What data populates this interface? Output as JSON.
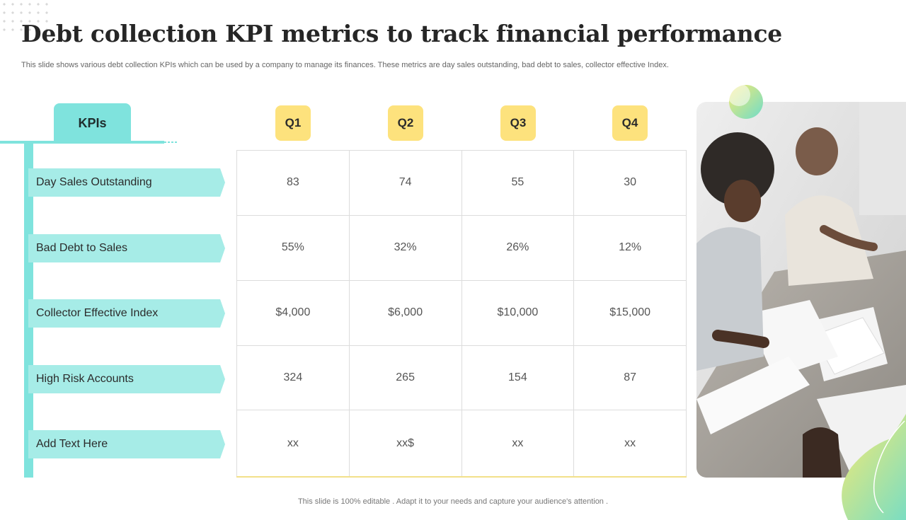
{
  "slide": {
    "title": "Debt collection KPI metrics to track financial performance",
    "subtitle": "This slide shows various debt collection KPIs which can be used by a company to manage its finances. These metrics are day sales outstanding, bad debt to sales, collector effective Index.",
    "footer": "This slide is 100% editable . Adapt it to your needs and capture your audience's attention ."
  },
  "kpi_header": "KPIs",
  "kpis": [
    "Day Sales Outstanding",
    "Bad Debt to Sales",
    "Collector Effective Index",
    "High Risk Accounts",
    "Add Text Here"
  ],
  "quarters": [
    "Q1",
    "Q2",
    "Q3",
    "Q4"
  ],
  "values": [
    [
      "83",
      "74",
      "55",
      "30"
    ],
    [
      "55%",
      "32%",
      "26%",
      "12%"
    ],
    [
      "$4,000",
      "$6,000",
      "$10,000",
      "$15,000"
    ],
    [
      "324",
      "265",
      "154",
      "87"
    ],
    [
      "xx",
      "xx$",
      "xx",
      "xx"
    ]
  ],
  "colors": {
    "accent_teal": "#7fe3dd",
    "kpi_row": "#a6ece7",
    "quarter_badge": "#fde27d"
  }
}
